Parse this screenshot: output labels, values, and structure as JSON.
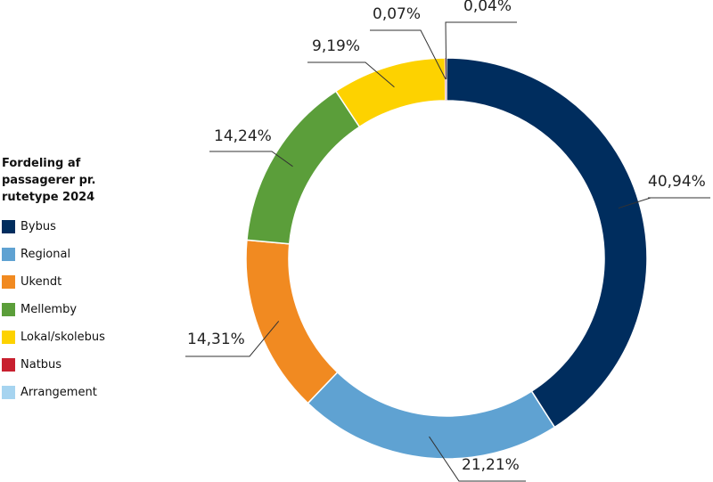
{
  "chart_data": {
    "type": "donut",
    "title": "Fordeling af passagerer pr. rutetype 2024",
    "categories": [
      "Bybus",
      "Regional",
      "Ukendt",
      "Mellemby",
      "Lokal/skolebus",
      "Natbus",
      "Arrangement"
    ],
    "values": [
      40.94,
      21.21,
      14.31,
      14.24,
      9.19,
      0.07,
      0.04
    ],
    "value_labels": [
      "40,94%",
      "21,21%",
      "14,31%",
      "14,24%",
      "9,19%",
      "0,07%",
      "0,04%"
    ],
    "colors": [
      "#002d5e",
      "#5fa2d2",
      "#f18a21",
      "#5b9e3a",
      "#fdd200",
      "#c8202f",
      "#a6d4f0"
    ]
  }
}
